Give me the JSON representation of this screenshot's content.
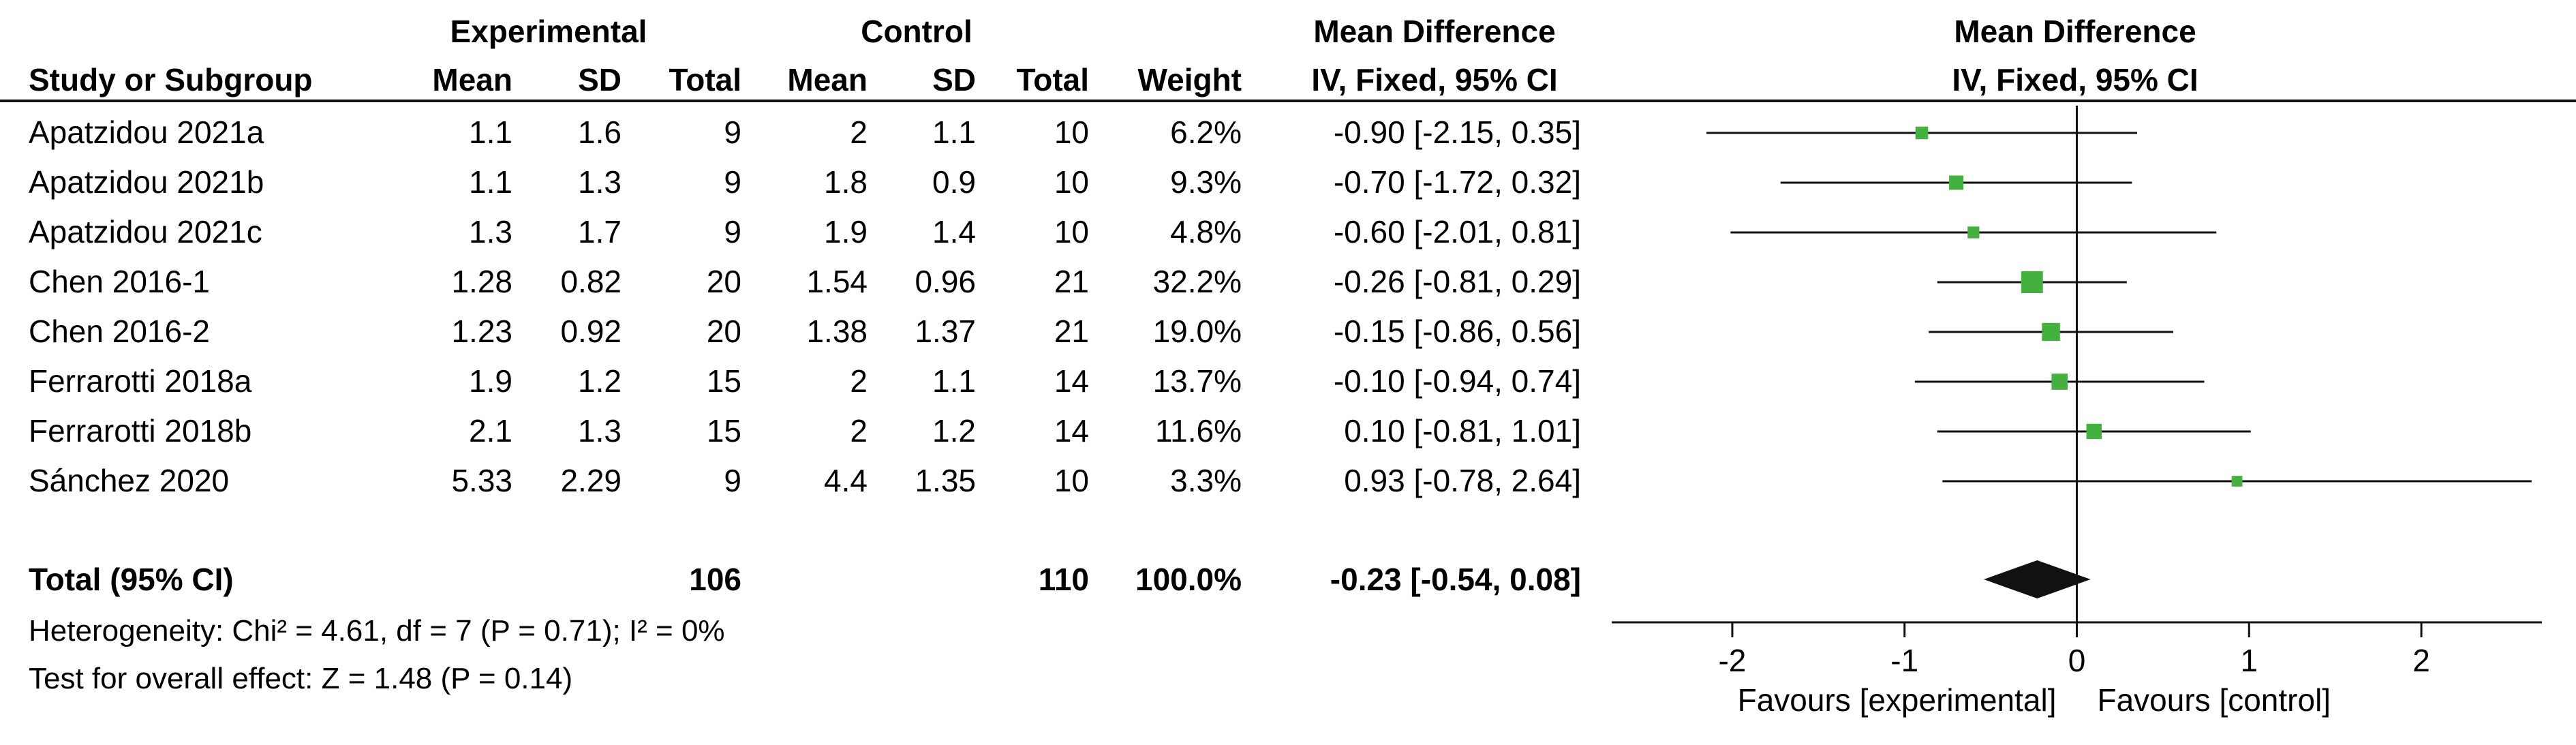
{
  "header": {
    "group_experimental": "Experimental",
    "group_control": "Control",
    "md_title_left": "Mean Difference",
    "md_method_left": "IV, Fixed, 95% CI",
    "md_title_right": "Mean Difference",
    "md_method_right": "IV, Fixed, 95% CI",
    "col_study": "Study or Subgroup",
    "col_exp_mean": "Mean",
    "col_exp_sd": "SD",
    "col_exp_total": "Total",
    "col_ctl_mean": "Mean",
    "col_ctl_sd": "SD",
    "col_ctl_total": "Total",
    "col_weight": "Weight"
  },
  "studies": [
    {
      "name": "Apatzidou 2021a",
      "exp_mean": "1.1",
      "exp_sd": "1.6",
      "exp_total": "9",
      "ctl_mean": "2",
      "ctl_sd": "1.1",
      "ctl_total": "10",
      "weight": "6.2%",
      "ci_text": "-0.90 [-2.15, 0.35]"
    },
    {
      "name": "Apatzidou 2021b",
      "exp_mean": "1.1",
      "exp_sd": "1.3",
      "exp_total": "9",
      "ctl_mean": "1.8",
      "ctl_sd": "0.9",
      "ctl_total": "10",
      "weight": "9.3%",
      "ci_text": "-0.70 [-1.72, 0.32]"
    },
    {
      "name": "Apatzidou 2021c",
      "exp_mean": "1.3",
      "exp_sd": "1.7",
      "exp_total": "9",
      "ctl_mean": "1.9",
      "ctl_sd": "1.4",
      "ctl_total": "10",
      "weight": "4.8%",
      "ci_text": "-0.60 [-2.01, 0.81]"
    },
    {
      "name": "Chen 2016-1",
      "exp_mean": "1.28",
      "exp_sd": "0.82",
      "exp_total": "20",
      "ctl_mean": "1.54",
      "ctl_sd": "0.96",
      "ctl_total": "21",
      "weight": "32.2%",
      "ci_text": "-0.26 [-0.81, 0.29]"
    },
    {
      "name": "Chen 2016-2",
      "exp_mean": "1.23",
      "exp_sd": "0.92",
      "exp_total": "20",
      "ctl_mean": "1.38",
      "ctl_sd": "1.37",
      "ctl_total": "21",
      "weight": "19.0%",
      "ci_text": "-0.15 [-0.86, 0.56]"
    },
    {
      "name": "Ferrarotti 2018a",
      "exp_mean": "1.9",
      "exp_sd": "1.2",
      "exp_total": "15",
      "ctl_mean": "2",
      "ctl_sd": "1.1",
      "ctl_total": "14",
      "weight": "13.7%",
      "ci_text": "-0.10 [-0.94, 0.74]"
    },
    {
      "name": "Ferrarotti 2018b",
      "exp_mean": "2.1",
      "exp_sd": "1.3",
      "exp_total": "15",
      "ctl_mean": "2",
      "ctl_sd": "1.2",
      "ctl_total": "14",
      "weight": "11.6%",
      "ci_text": "0.10 [-0.81, 1.01]"
    },
    {
      "name": "Sánchez 2020",
      "exp_mean": "5.33",
      "exp_sd": "2.29",
      "exp_total": "9",
      "ctl_mean": "4.4",
      "ctl_sd": "1.35",
      "ctl_total": "10",
      "weight": "3.3%",
      "ci_text": "0.93 [-0.78, 2.64]"
    }
  ],
  "total": {
    "label": "Total (95% CI)",
    "exp_total": "106",
    "ctl_total": "110",
    "weight": "100.0%",
    "ci_text": "-0.23 [-0.54, 0.08]"
  },
  "notes": {
    "heterogeneity": "Heterogeneity: Chi² = 4.61, df = 7 (P = 0.71); I² = 0%",
    "overall_effect": "Test for overall effect: Z = 1.48 (P = 0.14)"
  },
  "chart_data": {
    "type": "forest",
    "xlim": [
      -2.7,
      2.7
    ],
    "ticks": [
      -2,
      -1,
      0,
      1,
      2
    ],
    "tick_labels": [
      "-2",
      "-1",
      "0",
      "1",
      "2"
    ],
    "favours_left": "Favours [experimental]",
    "favours_right": "Favours [control]",
    "points": [
      {
        "md": -0.9,
        "lo": -2.15,
        "hi": 0.35,
        "weight": 6.2
      },
      {
        "md": -0.7,
        "lo": -1.72,
        "hi": 0.32,
        "weight": 9.3
      },
      {
        "md": -0.6,
        "lo": -2.01,
        "hi": 0.81,
        "weight": 4.8
      },
      {
        "md": -0.26,
        "lo": -0.81,
        "hi": 0.29,
        "weight": 32.2
      },
      {
        "md": -0.15,
        "lo": -0.86,
        "hi": 0.56,
        "weight": 19.0
      },
      {
        "md": -0.1,
        "lo": -0.94,
        "hi": 0.74,
        "weight": 13.7
      },
      {
        "md": 0.1,
        "lo": -0.81,
        "hi": 1.01,
        "weight": 11.6
      },
      {
        "md": 0.93,
        "lo": -0.78,
        "hi": 2.64,
        "weight": 3.3
      }
    ],
    "pooled": {
      "md": -0.23,
      "lo": -0.54,
      "hi": 0.08
    },
    "colors": {
      "square": "#44b040",
      "diamond": "#111111",
      "line": "#111111"
    }
  }
}
